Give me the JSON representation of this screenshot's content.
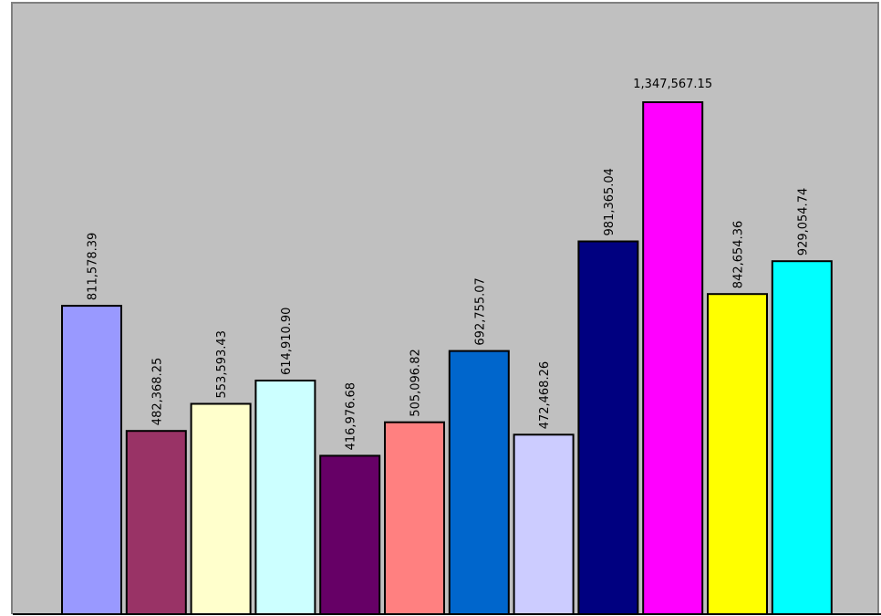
{
  "chart_data": {
    "type": "bar",
    "categories": [
      "",
      "",
      "",
      "",
      "",
      "",
      "",
      "",
      "",
      "",
      "",
      ""
    ],
    "values": [
      811578.39,
      482368.25,
      553593.43,
      614910.9,
      416976.68,
      505096.82,
      692755.07,
      472468.26,
      981365.04,
      1347567.15,
      842654.36,
      929054.74
    ],
    "labels": [
      "811,578.39",
      "482,368.25",
      "553,593.43",
      "614,910.90",
      "416,976.68",
      "505,096.82",
      "692,755.07",
      "472,468.26",
      "981,365.04",
      "1,347,567.15",
      "842,654.36",
      "929,054.74"
    ],
    "colors": [
      "#9999ff",
      "#993366",
      "#ffffcc",
      "#ccffff",
      "#660066",
      "#ff8080",
      "#0066cc",
      "#ccccff",
      "#000080",
      "#ff00ff",
      "#ffff00",
      "#00ffff"
    ],
    "label_orientation": [
      "vertical",
      "vertical",
      "vertical",
      "vertical",
      "vertical",
      "vertical",
      "vertical",
      "vertical",
      "vertical",
      "horizontal",
      "vertical",
      "vertical"
    ],
    "ylim": [
      0,
      1500000
    ],
    "title": "",
    "xlabel": "",
    "ylabel": "",
    "grid": false,
    "legend": "none",
    "plot_background": "#c0c0c0"
  }
}
